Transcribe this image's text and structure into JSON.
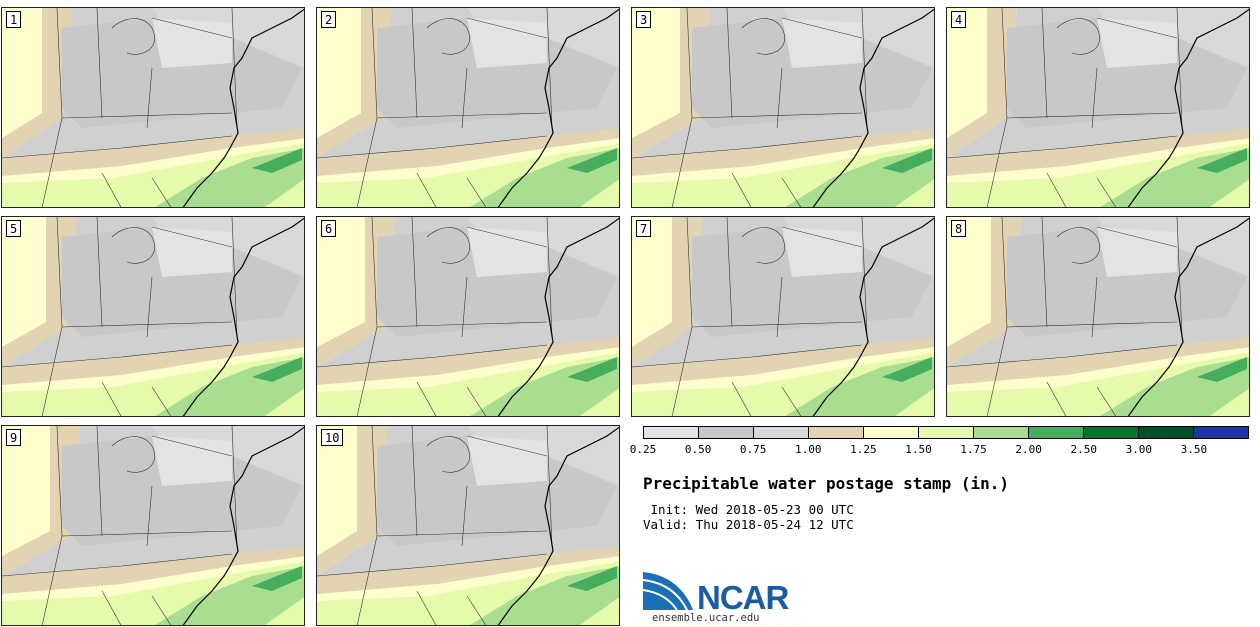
{
  "panels": [
    {
      "label": "1"
    },
    {
      "label": "2"
    },
    {
      "label": "3"
    },
    {
      "label": "4"
    },
    {
      "label": "5"
    },
    {
      "label": "6"
    },
    {
      "label": "7"
    },
    {
      "label": "8"
    },
    {
      "label": "9"
    },
    {
      "label": "10"
    }
  ],
  "legend": {
    "colors": [
      "#e3e3e3",
      "#c8c8c8",
      "#d9d9d9",
      "#e2d4b2",
      "#fffecd",
      "#e5fbab",
      "#a9dd8f",
      "#45ad5d",
      "#00772d",
      "#00502a",
      "#1b33ab"
    ],
    "ticks": [
      "0.25",
      "0.50",
      "0.75",
      "1.00",
      "1.25",
      "1.50",
      "1.75",
      "2.00",
      "2.50",
      "3.00",
      "3.50"
    ]
  },
  "title": "Precipitable water postage stamp (in.)",
  "init": " Init: Wed 2018-05-23 00 UTC",
  "valid": "Valid: Thu 2018-05-24 12 UTC",
  "logo": {
    "name": "NCAR",
    "url": "ensemble.ucar.edu"
  }
}
